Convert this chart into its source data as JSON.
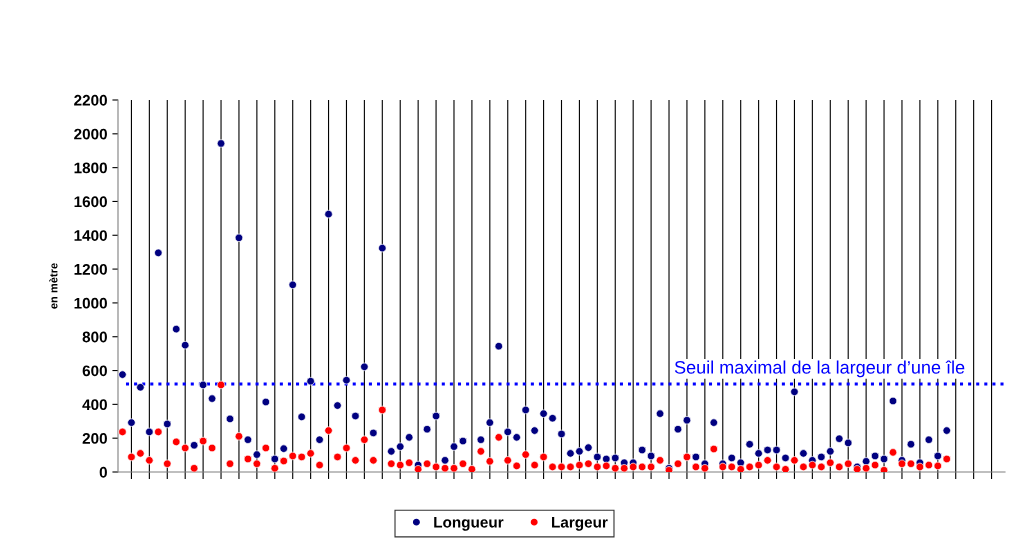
{
  "chart_data": {
    "type": "scatter",
    "ylabel": "en mètre",
    "categories": [
      null,
      null,
      null,
      null,
      null,
      null,
      null,
      null,
      null,
      null,
      null,
      null,
      null,
      null,
      null,
      null,
      null,
      null,
      null,
      null,
      null,
      null,
      null,
      null,
      null,
      null,
      null,
      null,
      null,
      null,
      null,
      null,
      null,
      null,
      null,
      null,
      null,
      null,
      null,
      null,
      null,
      null,
      null,
      null,
      null,
      null,
      null,
      null,
      null,
      null,
      null,
      null,
      null,
      null,
      null,
      null,
      null,
      null,
      null,
      null,
      null,
      null,
      null,
      null,
      null,
      null,
      null,
      null,
      null,
      null,
      null,
      null,
      null,
      null,
      null,
      null,
      null,
      null,
      null,
      null,
      null,
      null,
      null,
      null,
      null,
      null,
      null,
      null,
      null,
      null,
      null,
      null,
      null,
      null,
      null,
      null,
      null,
      null,
      null
    ],
    "series": [
      {
        "name": "Longueur",
        "color": "#000080",
        "values": [
          576,
          292,
          501,
          237,
          1296,
          284,
          845,
          750,
          158,
          515,
          434,
          1943,
          314,
          1385,
          191,
          103,
          414,
          77,
          138,
          1107,
          326,
          537,
          191,
          1525,
          393,
          543,
          331,
          622,
          231,
          1324,
          122,
          150,
          205,
          41,
          253,
          331,
          69,
          150,
          183,
          null,
          191,
          292,
          744,
          237,
          205,
          367,
          245,
          345,
          318,
          225,
          110,
          122,
          144,
          89,
          77,
          83,
          55,
          55,
          130,
          95,
          345,
          22,
          253,
          306,
          89,
          49,
          292,
          49,
          83,
          55,
          164,
          110,
          130,
          130,
          83,
          474,
          110,
          69,
          89,
          122,
          197,
          172,
          30,
          63,
          95,
          77,
          420,
          69,
          164,
          55,
          191,
          95,
          245,
          null,
          null,
          null,
          null,
          null,
          null
        ]
      },
      {
        "name": "Largeur",
        "color": "#ff0000",
        "values": [
          237,
          89,
          110,
          69,
          237,
          49,
          178,
          142,
          22,
          183,
          142,
          515,
          49,
          211,
          77,
          49,
          142,
          22,
          65,
          95,
          89,
          110,
          41,
          245,
          89,
          142,
          69,
          191,
          69,
          367,
          49,
          41,
          55,
          16,
          49,
          30,
          22,
          22,
          49,
          16,
          122,
          63,
          205,
          69,
          36,
          103,
          41,
          89,
          30,
          30,
          30,
          41,
          49,
          30,
          36,
          22,
          22,
          30,
          30,
          30,
          69,
          10,
          49,
          89,
          30,
          22,
          136,
          30,
          30,
          16,
          30,
          41,
          69,
          30,
          16,
          69,
          30,
          41,
          30,
          55,
          30,
          49,
          16,
          22,
          41,
          10,
          116,
          49,
          49,
          30,
          41,
          36,
          77,
          null,
          null,
          null,
          null,
          null,
          null
        ]
      }
    ],
    "ylim": [
      0,
      2200
    ],
    "yticks": [
      0,
      200,
      400,
      600,
      800,
      1000,
      1200,
      1400,
      1600,
      1800,
      2000,
      2200
    ],
    "ref_lines": [
      {
        "axis": "y",
        "value": 520,
        "label": "Seuil maximal de la largeur d’une île",
        "color": "#0000ff",
        "line_style": "dotted"
      }
    ],
    "grid": "x",
    "legend": "bottom",
    "marker": "circle"
  }
}
